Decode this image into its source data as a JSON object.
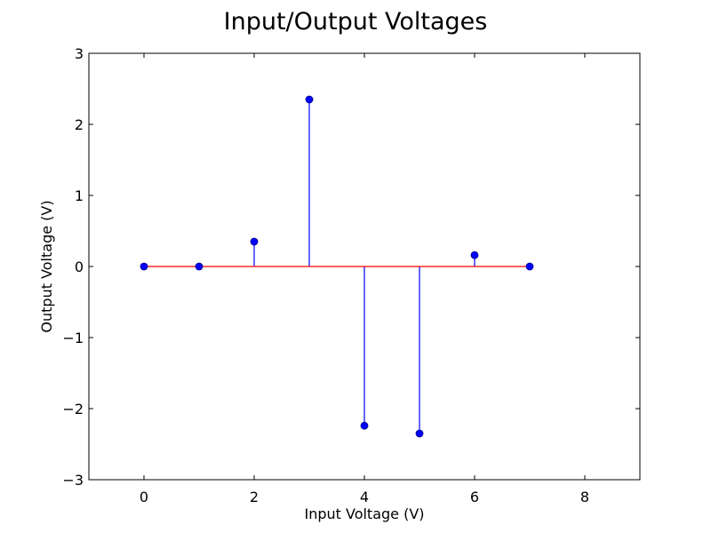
{
  "chart_data": {
    "type": "stem",
    "title": "Input/Output Voltages",
    "xlabel": "Input Voltage (V)",
    "ylabel": "Output Voltage (V)",
    "xlim": [
      -1,
      9
    ],
    "ylim": [
      -3,
      3
    ],
    "xticks": [
      0,
      2,
      4,
      6,
      8
    ],
    "yticks": [
      -3,
      -2,
      -1,
      0,
      1,
      2,
      3
    ],
    "xtick_labels": [
      "0",
      "2",
      "4",
      "6",
      "8"
    ],
    "ytick_labels": [
      "−3",
      "−2",
      "−1",
      "0",
      "1",
      "2",
      "3"
    ],
    "grid": false,
    "baseline": 0,
    "x": [
      0,
      1,
      2,
      3,
      4,
      5,
      6,
      7
    ],
    "y": [
      0,
      0,
      0.35,
      2.35,
      -2.24,
      -2.35,
      0.16,
      0
    ],
    "colors": {
      "stem": "#0000ff",
      "marker": "#0000ff",
      "marker_edge": "#000080",
      "baseline": "#ff0000",
      "axes": "#000000"
    }
  }
}
